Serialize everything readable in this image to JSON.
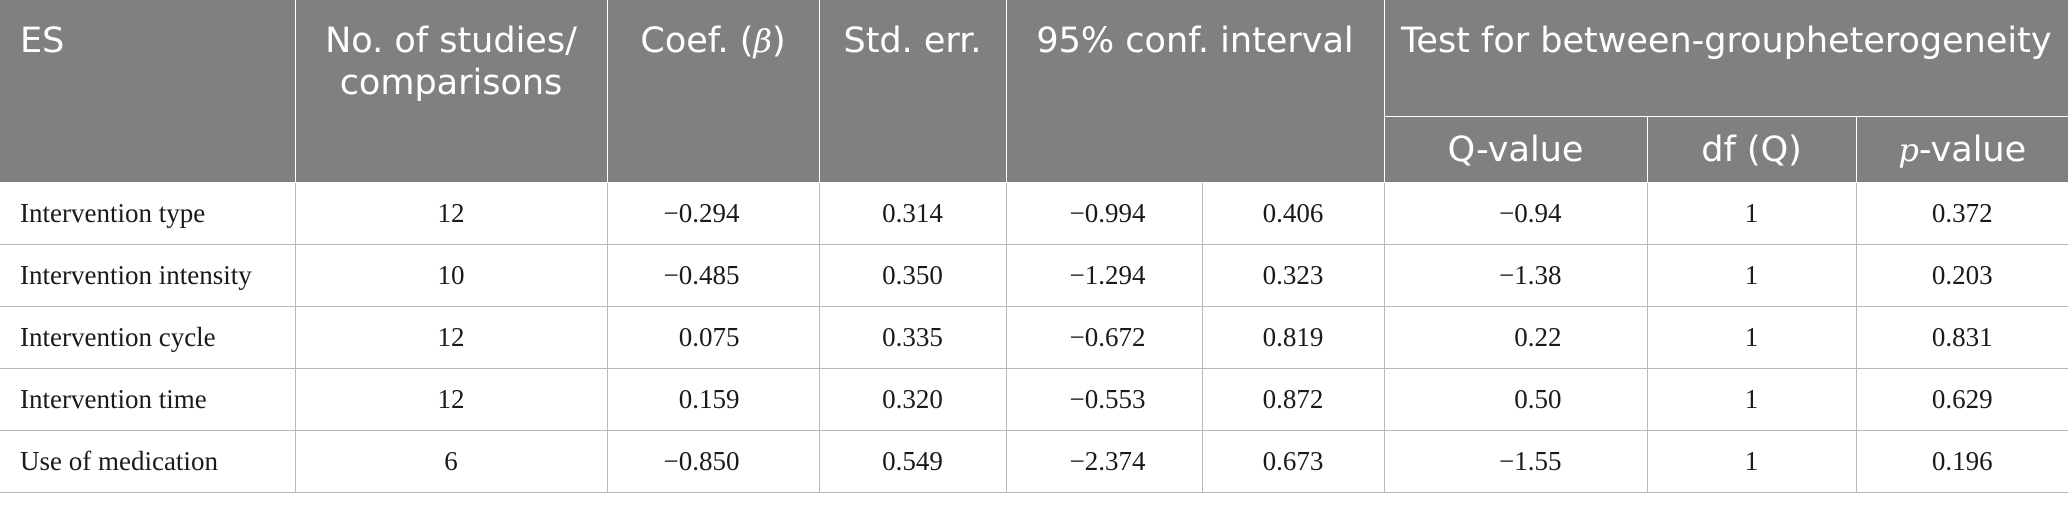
{
  "header": {
    "es": "ES",
    "studies": "No. of studies/ comparisons",
    "coef_prefix": "Coef. (",
    "coef_beta": "β",
    "coef_suffix": ")",
    "std_err": "Std. err.",
    "conf_interval": "95% conf. interval",
    "between_group": "Test for between-groupheterogeneity",
    "q_value": "Q-value",
    "df_q": "df (Q)",
    "p_italic": "p",
    "p_suffix": "-value"
  },
  "rows": [
    {
      "es": "Intervention type",
      "studies": "12",
      "coef": "−0.294",
      "se": "0.314",
      "ci_low": "−0.994",
      "ci_high": "0.406",
      "q": "−0.94",
      "df": "1",
      "p": "0.372"
    },
    {
      "es": "Intervention intensity",
      "studies": "10",
      "coef": "−0.485",
      "se": "0.350",
      "ci_low": "−1.294",
      "ci_high": "0.323",
      "q": "−1.38",
      "df": "1",
      "p": "0.203"
    },
    {
      "es": "Intervention cycle",
      "studies": "12",
      "coef": "0.075",
      "se": "0.335",
      "ci_low": "−0.672",
      "ci_high": "0.819",
      "q": "0.22",
      "df": "1",
      "p": "0.831"
    },
    {
      "es": "Intervention time",
      "studies": "12",
      "coef": "0.159",
      "se": "0.320",
      "ci_low": "−0.553",
      "ci_high": "0.872",
      "q": "0.50",
      "df": "1",
      "p": "0.629"
    },
    {
      "es": "Use of medication",
      "studies": "6",
      "coef": "−0.850",
      "se": "0.549",
      "ci_low": "−2.374",
      "ci_high": "0.673",
      "q": "−1.55",
      "df": "1",
      "p": "0.196"
    }
  ]
}
